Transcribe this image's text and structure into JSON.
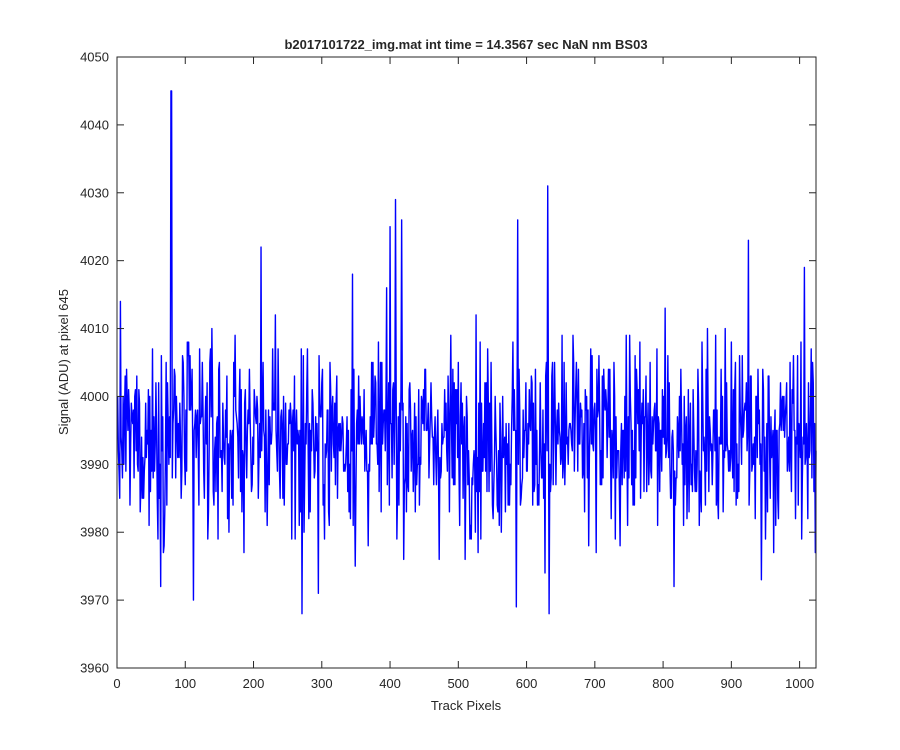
{
  "chart_data": {
    "type": "line",
    "title": "b2017101722_img.mat int time = 14.3567 sec  NaN nm BS03",
    "xlabel": "Track Pixels",
    "ylabel": "Signal (ADU) at pixel 645",
    "xlim": [
      0,
      1024
    ],
    "ylim": [
      3960,
      4050
    ],
    "x_ticks": [
      0,
      100,
      200,
      300,
      400,
      500,
      600,
      700,
      800,
      900,
      1000
    ],
    "y_ticks": [
      3960,
      3970,
      3980,
      3990,
      4000,
      4010,
      4020,
      4030,
      4040,
      4050
    ],
    "grid": false,
    "series": [
      {
        "color": "#0000ff",
        "x_start": 1,
        "x_step": 1,
        "baseline": 3994,
        "count": 1024,
        "notable_points": [
          {
            "x": 79,
            "y": 4045
          },
          {
            "x": 80,
            "y": 4045
          },
          {
            "x": 112,
            "y": 3970
          },
          {
            "x": 211,
            "y": 4022
          },
          {
            "x": 271,
            "y": 3968
          },
          {
            "x": 295,
            "y": 3971
          },
          {
            "x": 345,
            "y": 4018
          },
          {
            "x": 400,
            "y": 4025
          },
          {
            "x": 408,
            "y": 4029
          },
          {
            "x": 417,
            "y": 4026
          },
          {
            "x": 585,
            "y": 3969
          },
          {
            "x": 587,
            "y": 4026
          },
          {
            "x": 631,
            "y": 4031
          },
          {
            "x": 633,
            "y": 3968
          },
          {
            "x": 691,
            "y": 3978
          },
          {
            "x": 816,
            "y": 3972
          },
          {
            "x": 925,
            "y": 4023
          },
          {
            "x": 944,
            "y": 3973
          },
          {
            "x": 1007,
            "y": 4019
          },
          {
            "x": 1023,
            "y": 3977
          }
        ]
      }
    ]
  }
}
